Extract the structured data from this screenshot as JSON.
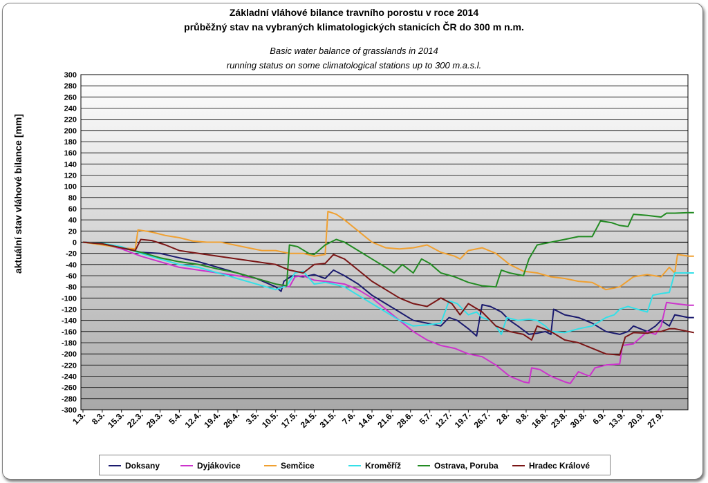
{
  "title_cz_1": "Základní vláhové bilance travního porostu v roce 2014",
  "title_cz_2": "průběžný stav na vybraných klimatologických stanicích ČR do 300 m n.m.",
  "title_en_1": "Basic water balance of grasslands in 2014",
  "title_en_2": "running status on some climatological stations up to 300 m.a.s.l.",
  "chart_data": {
    "type": "line",
    "ylabel": "aktuální stav vláhové bilance [mm]",
    "xlabel": "",
    "ylim": [
      -300,
      300
    ],
    "ytick_step": 20,
    "x_tick_labels": [
      "1.3.",
      "8.3.",
      "15.3.",
      "22.3.",
      "29.3.",
      "5.4.",
      "12.4.",
      "19.4.",
      "26.4.",
      "3.5.",
      "10.5.",
      "17.5.",
      "24.5.",
      "31.5.",
      "7.6.",
      "14.6.",
      "21.6.",
      "28.6.",
      "5.7.",
      "12.7.",
      "19.7.",
      "26.7.",
      "2.8.",
      "9.8.",
      "16.8.",
      "23.8.",
      "30.8.",
      "6.9.",
      "13.9.",
      "20.9.",
      "27.9."
    ],
    "x_day_range": [
      0,
      213
    ],
    "grid": true,
    "legend_position": "bottom",
    "series": [
      {
        "name": "Doksany",
        "color": "#1a1a6e",
        "points": [
          [
            0,
            0
          ],
          [
            7,
            -2
          ],
          [
            14,
            -10
          ],
          [
            21,
            -18
          ],
          [
            28,
            -20
          ],
          [
            35,
            -28
          ],
          [
            42,
            -35
          ],
          [
            49,
            -45
          ],
          [
            56,
            -55
          ],
          [
            63,
            -65
          ],
          [
            70,
            -80
          ],
          [
            72,
            -88
          ],
          [
            73,
            -70
          ],
          [
            76,
            -60
          ],
          [
            80,
            -62
          ],
          [
            84,
            -58
          ],
          [
            88,
            -65
          ],
          [
            91,
            -50
          ],
          [
            95,
            -60
          ],
          [
            100,
            -75
          ],
          [
            105,
            -95
          ],
          [
            110,
            -110
          ],
          [
            115,
            -125
          ],
          [
            120,
            -140
          ],
          [
            125,
            -145
          ],
          [
            130,
            -150
          ],
          [
            133,
            -135
          ],
          [
            136,
            -140
          ],
          [
            140,
            -155
          ],
          [
            143,
            -168
          ],
          [
            145,
            -112
          ],
          [
            148,
            -115
          ],
          [
            152,
            -125
          ],
          [
            155,
            -140
          ],
          [
            158,
            -150
          ],
          [
            162,
            -165
          ],
          [
            165,
            -163
          ],
          [
            168,
            -160
          ],
          [
            170,
            -165
          ],
          [
            171,
            -120
          ],
          [
            175,
            -130
          ],
          [
            180,
            -135
          ],
          [
            185,
            -145
          ],
          [
            190,
            -160
          ],
          [
            195,
            -165
          ],
          [
            198,
            -160
          ],
          [
            200,
            -150
          ],
          [
            205,
            -160
          ],
          [
            208,
            -150
          ],
          [
            210,
            -140
          ],
          [
            213,
            -150
          ],
          [
            215,
            -130
          ],
          [
            220,
            -135
          ],
          [
            222,
            -135
          ]
        ]
      },
      {
        "name": "Dyjákovice",
        "color": "#cc33cc",
        "points": [
          [
            0,
            0
          ],
          [
            7,
            -3
          ],
          [
            14,
            -12
          ],
          [
            21,
            -25
          ],
          [
            28,
            -35
          ],
          [
            35,
            -45
          ],
          [
            42,
            -50
          ],
          [
            49,
            -55
          ],
          [
            56,
            -60
          ],
          [
            63,
            -65
          ],
          [
            70,
            -75
          ],
          [
            75,
            -80
          ],
          [
            77,
            -62
          ],
          [
            80,
            -60
          ],
          [
            84,
            -68
          ],
          [
            88,
            -70
          ],
          [
            91,
            -72
          ],
          [
            95,
            -75
          ],
          [
            100,
            -85
          ],
          [
            105,
            -100
          ],
          [
            110,
            -120
          ],
          [
            115,
            -140
          ],
          [
            120,
            -160
          ],
          [
            125,
            -175
          ],
          [
            130,
            -185
          ],
          [
            135,
            -190
          ],
          [
            140,
            -200
          ],
          [
            145,
            -205
          ],
          [
            150,
            -220
          ],
          [
            155,
            -240
          ],
          [
            160,
            -250
          ],
          [
            162,
            -252
          ],
          [
            163,
            -225
          ],
          [
            166,
            -228
          ],
          [
            170,
            -240
          ],
          [
            175,
            -250
          ],
          [
            177,
            -253
          ],
          [
            180,
            -232
          ],
          [
            184,
            -240
          ],
          [
            186,
            -225
          ],
          [
            190,
            -220
          ],
          [
            195,
            -218
          ],
          [
            196,
            -185
          ],
          [
            200,
            -182
          ],
          [
            205,
            -160
          ],
          [
            208,
            -165
          ],
          [
            210,
            -150
          ],
          [
            212,
            -108
          ],
          [
            215,
            -110
          ],
          [
            220,
            -113
          ],
          [
            222,
            -113
          ]
        ]
      },
      {
        "name": "Semčice",
        "color": "#f0a030",
        "points": [
          [
            0,
            0
          ],
          [
            7,
            -5
          ],
          [
            14,
            -10
          ],
          [
            19,
            -12
          ],
          [
            20,
            22
          ],
          [
            25,
            18
          ],
          [
            30,
            12
          ],
          [
            35,
            8
          ],
          [
            40,
            2
          ],
          [
            45,
            0
          ],
          [
            50,
            0
          ],
          [
            55,
            -5
          ],
          [
            60,
            -10
          ],
          [
            65,
            -15
          ],
          [
            70,
            -15
          ],
          [
            75,
            -20
          ],
          [
            80,
            -20
          ],
          [
            84,
            -25
          ],
          [
            88,
            -22
          ],
          [
            89,
            55
          ],
          [
            92,
            50
          ],
          [
            95,
            40
          ],
          [
            100,
            20
          ],
          [
            105,
            0
          ],
          [
            110,
            -10
          ],
          [
            115,
            -12
          ],
          [
            120,
            -10
          ],
          [
            125,
            -5
          ],
          [
            130,
            -18
          ],
          [
            135,
            -25
          ],
          [
            137,
            -30
          ],
          [
            140,
            -15
          ],
          [
            145,
            -10
          ],
          [
            150,
            -20
          ],
          [
            155,
            -40
          ],
          [
            160,
            -52
          ],
          [
            165,
            -55
          ],
          [
            170,
            -62
          ],
          [
            175,
            -65
          ],
          [
            180,
            -70
          ],
          [
            185,
            -72
          ],
          [
            190,
            -85
          ],
          [
            195,
            -80
          ],
          [
            200,
            -62
          ],
          [
            205,
            -58
          ],
          [
            210,
            -62
          ],
          [
            213,
            -45
          ],
          [
            215,
            -55
          ],
          [
            216,
            -22
          ],
          [
            220,
            -25
          ],
          [
            222,
            -25
          ]
        ]
      },
      {
        "name": "Kroměříž",
        "color": "#33e0e8",
        "points": [
          [
            0,
            0
          ],
          [
            7,
            -2
          ],
          [
            14,
            -8
          ],
          [
            21,
            -20
          ],
          [
            28,
            -30
          ],
          [
            35,
            -40
          ],
          [
            42,
            -45
          ],
          [
            49,
            -55
          ],
          [
            56,
            -65
          ],
          [
            63,
            -75
          ],
          [
            70,
            -85
          ],
          [
            74,
            -78
          ],
          [
            77,
            -55
          ],
          [
            80,
            -52
          ],
          [
            84,
            -75
          ],
          [
            88,
            -72
          ],
          [
            91,
            -75
          ],
          [
            95,
            -80
          ],
          [
            100,
            -95
          ],
          [
            105,
            -110
          ],
          [
            110,
            -125
          ],
          [
            115,
            -140
          ],
          [
            120,
            -150
          ],
          [
            125,
            -148
          ],
          [
            130,
            -145
          ],
          [
            133,
            -105
          ],
          [
            136,
            -110
          ],
          [
            140,
            -130
          ],
          [
            143,
            -125
          ],
          [
            145,
            -135
          ],
          [
            148,
            -140
          ],
          [
            150,
            -150
          ],
          [
            152,
            -165
          ],
          [
            154,
            -135
          ],
          [
            158,
            -140
          ],
          [
            162,
            -138
          ],
          [
            165,
            -140
          ],
          [
            168,
            -150
          ],
          [
            170,
            -160
          ],
          [
            175,
            -162
          ],
          [
            180,
            -155
          ],
          [
            185,
            -150
          ],
          [
            190,
            -135
          ],
          [
            193,
            -130
          ],
          [
            195,
            -120
          ],
          [
            198,
            -115
          ],
          [
            200,
            -118
          ],
          [
            205,
            -125
          ],
          [
            207,
            -95
          ],
          [
            210,
            -92
          ],
          [
            213,
            -90
          ],
          [
            215,
            -55
          ],
          [
            220,
            -55
          ],
          [
            222,
            -55
          ]
        ]
      },
      {
        "name": "Ostrava, Poruba",
        "color": "#228b22",
        "points": [
          [
            0,
            0
          ],
          [
            7,
            -3
          ],
          [
            14,
            -10
          ],
          [
            21,
            -18
          ],
          [
            28,
            -28
          ],
          [
            35,
            -35
          ],
          [
            42,
            -40
          ],
          [
            49,
            -48
          ],
          [
            56,
            -55
          ],
          [
            63,
            -65
          ],
          [
            70,
            -75
          ],
          [
            74,
            -78
          ],
          [
            75,
            -5
          ],
          [
            78,
            -8
          ],
          [
            82,
            -20
          ],
          [
            84,
            -22
          ],
          [
            88,
            -5
          ],
          [
            92,
            5
          ],
          [
            95,
            0
          ],
          [
            100,
            -15
          ],
          [
            105,
            -30
          ],
          [
            110,
            -45
          ],
          [
            113,
            -55
          ],
          [
            116,
            -40
          ],
          [
            120,
            -55
          ],
          [
            123,
            -30
          ],
          [
            126,
            -38
          ],
          [
            130,
            -55
          ],
          [
            135,
            -62
          ],
          [
            140,
            -72
          ],
          [
            145,
            -78
          ],
          [
            150,
            -80
          ],
          [
            152,
            -50
          ],
          [
            155,
            -55
          ],
          [
            160,
            -60
          ],
          [
            162,
            -30
          ],
          [
            165,
            -5
          ],
          [
            170,
            0
          ],
          [
            175,
            5
          ],
          [
            180,
            10
          ],
          [
            185,
            10
          ],
          [
            188,
            38
          ],
          [
            192,
            35
          ],
          [
            195,
            30
          ],
          [
            198,
            28
          ],
          [
            200,
            50
          ],
          [
            205,
            48
          ],
          [
            210,
            45
          ],
          [
            212,
            52
          ],
          [
            215,
            52
          ],
          [
            220,
            53
          ],
          [
            222,
            53
          ]
        ]
      },
      {
        "name": "Hradec Králové",
        "color": "#7a1515",
        "points": [
          [
            0,
            0
          ],
          [
            7,
            -3
          ],
          [
            14,
            -10
          ],
          [
            19,
            -15
          ],
          [
            21,
            5
          ],
          [
            25,
            3
          ],
          [
            30,
            -5
          ],
          [
            35,
            -15
          ],
          [
            42,
            -20
          ],
          [
            49,
            -25
          ],
          [
            56,
            -30
          ],
          [
            63,
            -35
          ],
          [
            70,
            -40
          ],
          [
            75,
            -50
          ],
          [
            80,
            -55
          ],
          [
            84,
            -40
          ],
          [
            88,
            -38
          ],
          [
            91,
            -22
          ],
          [
            95,
            -30
          ],
          [
            100,
            -50
          ],
          [
            105,
            -70
          ],
          [
            110,
            -85
          ],
          [
            115,
            -100
          ],
          [
            120,
            -110
          ],
          [
            125,
            -115
          ],
          [
            130,
            -100
          ],
          [
            134,
            -110
          ],
          [
            137,
            -130
          ],
          [
            140,
            -110
          ],
          [
            145,
            -125
          ],
          [
            150,
            -150
          ],
          [
            155,
            -160
          ],
          [
            160,
            -165
          ],
          [
            163,
            -175
          ],
          [
            165,
            -150
          ],
          [
            170,
            -160
          ],
          [
            175,
            -175
          ],
          [
            180,
            -180
          ],
          [
            185,
            -190
          ],
          [
            190,
            -200
          ],
          [
            195,
            -202
          ],
          [
            197,
            -170
          ],
          [
            200,
            -162
          ],
          [
            205,
            -163
          ],
          [
            208,
            -160
          ],
          [
            210,
            -160
          ],
          [
            213,
            -155
          ],
          [
            215,
            -155
          ],
          [
            220,
            -160
          ],
          [
            222,
            -162
          ]
        ]
      }
    ]
  }
}
